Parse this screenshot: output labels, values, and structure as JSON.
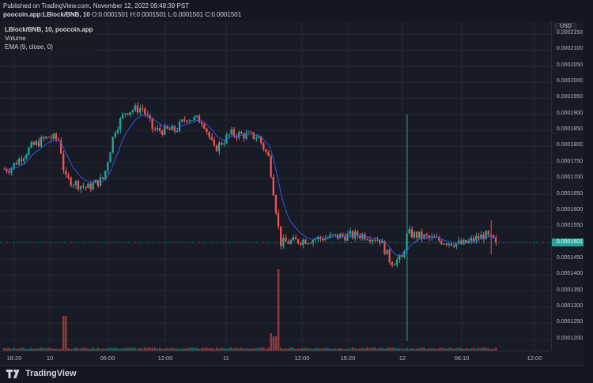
{
  "header": {
    "published": "Published on TradingView.com, November 12, 2022 09:48:39 PST",
    "symbol_line": "poocoin.app:LBlock/BNB, 10",
    "ohlc": {
      "o_label": "O:",
      "o": "0.0001501",
      "h_label": "H:",
      "h": "0.0001501",
      "l_label": "L:",
      "l": "0.0001501",
      "c_label": "C:",
      "c": "0.0001501"
    }
  },
  "legend": {
    "title": "LBlock/BNB, 10, poocoin.app",
    "volume": "Volume",
    "ema": "EMA (9, close, 0)"
  },
  "price_axis": {
    "currency": "USD",
    "last_price": "0.0001501",
    "labels": [
      "0.0002150",
      "0.0002100",
      "0.0002050",
      "0.0002000",
      "0.0001950",
      "0.0001900",
      "0.0001850",
      "0.0001800",
      "0.0001750",
      "0.0001700",
      "0.0001650",
      "0.0001600",
      "0.0001550",
      "0.0001450",
      "0.0001400",
      "0.0001350",
      "0.0001300",
      "0.0001250",
      "0.0001200"
    ]
  },
  "time_axis": {
    "labels": [
      "18:20",
      "10",
      "06:00",
      "12:00",
      "11",
      "12:00",
      "15:20",
      "12",
      "06:10",
      "12:00"
    ]
  },
  "footer": {
    "brand": "TradingView"
  },
  "colors": {
    "up": "#26a69a",
    "down": "#ef5350",
    "ema": "#2962ff",
    "background": "#181b25",
    "grid": "#232733"
  },
  "chart_data": {
    "type": "candlestick",
    "title": "poocoin.app:LBlock/BNB, 10",
    "xlabel": "",
    "ylabel": "USD",
    "ylim": [
      0.000117,
      0.000217
    ],
    "grid": true,
    "legend": [
      "LBlock/BNB, 10, poocoin.app",
      "Volume",
      "EMA (9, close, 0)"
    ],
    "x_ticks": [
      "18:20",
      "10",
      "06:00",
      "12:00",
      "11",
      "12:00",
      "15:20",
      "12",
      "06:10",
      "12:00"
    ],
    "price_path": [
      {
        "x": 0.01,
        "close": 0.000173
      },
      {
        "x": 0.05,
        "close": 0.00018
      },
      {
        "x": 0.08,
        "close": 0.000183
      },
      {
        "x": 0.1,
        "close": 0.000182
      },
      {
        "x": 0.11,
        "close": 0.00017
      },
      {
        "x": 0.15,
        "close": 0.000167
      },
      {
        "x": 0.18,
        "close": 0.00017
      },
      {
        "x": 0.2,
        "close": 0.000185
      },
      {
        "x": 0.22,
        "close": 0.000191
      },
      {
        "x": 0.25,
        "close": 0.000192
      },
      {
        "x": 0.27,
        "close": 0.000185
      },
      {
        "x": 0.31,
        "close": 0.000185
      },
      {
        "x": 0.33,
        "close": 0.000189
      },
      {
        "x": 0.36,
        "close": 0.000188
      },
      {
        "x": 0.38,
        "close": 0.000179
      },
      {
        "x": 0.41,
        "close": 0.000184
      },
      {
        "x": 0.46,
        "close": 0.000183
      },
      {
        "x": 0.48,
        "close": 0.000176
      },
      {
        "x": 0.5,
        "close": 0.00015
      },
      {
        "x": 0.55,
        "close": 0.000151
      },
      {
        "x": 0.6,
        "close": 0.000152
      },
      {
        "x": 0.65,
        "close": 0.0001525
      },
      {
        "x": 0.68,
        "close": 0.000151
      },
      {
        "x": 0.7,
        "close": 0.000144
      },
      {
        "x": 0.72,
        "close": 0.000145
      },
      {
        "x": 0.73,
        "close": 0.000153
      },
      {
        "x": 0.78,
        "close": 0.000151
      },
      {
        "x": 0.83,
        "close": 0.0001495
      },
      {
        "x": 0.87,
        "close": 0.0001525
      },
      {
        "x": 0.89,
        "close": 0.0001501
      }
    ],
    "series": [
      {
        "name": "Volume",
        "notable_spikes": [
          {
            "x": 0.11,
            "color": "down",
            "relative": 0.35
          },
          {
            "x": 0.49,
            "color": "down",
            "relative": 0.22
          },
          {
            "x": 0.5,
            "color": "down",
            "relative": 1.0
          }
        ]
      },
      {
        "name": "EMA (9, close, 0)",
        "color": "#2962ff"
      }
    ],
    "annotations": [
      "Last price 0.0001501",
      "Spike wick to ~0.0001900 near '12'"
    ]
  }
}
